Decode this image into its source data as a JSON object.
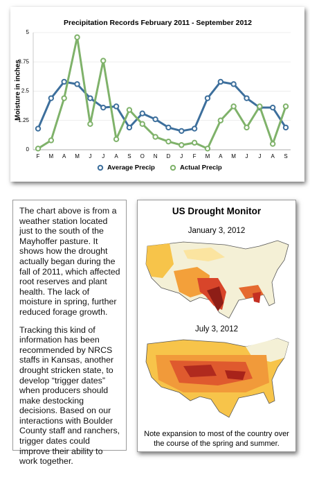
{
  "chart_data": {
    "type": "line",
    "title": "Precipitation Records February 2011 - September 2012",
    "y_label": "Moisture in inches",
    "categories": [
      "F",
      "M",
      "A",
      "M",
      "J",
      "J",
      "A",
      "S",
      "O",
      "N",
      "D",
      "J",
      "F",
      "M",
      "A",
      "M",
      "J",
      "J",
      "A",
      "S"
    ],
    "series": [
      {
        "name": "Average Precip",
        "color": "#3d6f9c",
        "values": [
          0.9,
          2.2,
          2.9,
          2.8,
          2.2,
          1.8,
          1.85,
          0.95,
          1.55,
          1.3,
          0.95,
          0.8,
          0.9,
          2.2,
          2.9,
          2.8,
          2.2,
          1.8,
          1.8,
          0.95
        ]
      },
      {
        "name": "Actual Precip",
        "color": "#7fb26a",
        "values": [
          0.05,
          0.4,
          2.2,
          4.8,
          1.1,
          3.8,
          0.45,
          1.7,
          1.1,
          0.55,
          0.35,
          0.2,
          0.3,
          0.05,
          1.25,
          1.85,
          0.95,
          1.85,
          0.25,
          1.85
        ]
      }
    ],
    "ylim": [
      0,
      5
    ],
    "yticks": [
      0,
      1.25,
      2.5,
      3.75,
      5
    ],
    "grid": true,
    "legend": "bottom"
  },
  "text_box": {
    "paragraphs": [
      "The chart above is from a weather station located just to the south of the Mayhoffer pasture.  It shows how the drought actually began during the fall of 2011, which affected root reserves and plant health.  The lack of moisture in spring, further reduced forage growth.",
      "Tracking this kind of information has been recommended by NRCS staffs in Kansas, another drought stricken state, to develop “trigger dates” when producers should make destocking decisions.  Based on our interactions with Boulder County staff and ranchers, trigger dates could improve their ability to work together."
    ]
  },
  "drought_panel": {
    "title": "US Drought Monitor",
    "maps": [
      {
        "label": "January 3, 2012"
      },
      {
        "label": "July 3, 2012"
      }
    ],
    "caption": "Note expansion to most of the country over the course of the spring and summer."
  }
}
